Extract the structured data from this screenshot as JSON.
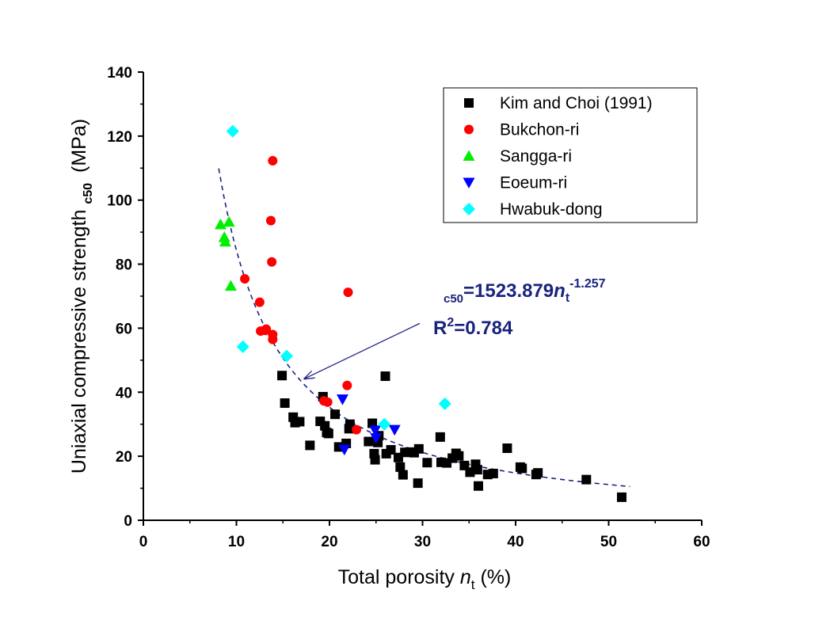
{
  "chart_data": {
    "type": "scatter",
    "xlabel": "Total porosity n_t (%)",
    "xlabel_parts": {
      "main": "Total porosity ",
      "var": "n",
      "sub": "t",
      "unit": " (%)"
    },
    "ylabel": "Uniaxial compressive strength c50 (MPa)",
    "ylabel_parts": {
      "main": "Uniaxial compressive strength ",
      "sub": "c50",
      "unit": " (MPa)"
    },
    "xlim": [
      0,
      60
    ],
    "ylim": [
      0,
      140
    ],
    "xticks": [
      0,
      10,
      20,
      30,
      40,
      50,
      60
    ],
    "yticks": [
      0,
      20,
      40,
      60,
      80,
      100,
      120,
      140
    ],
    "grid": false,
    "legend_position": "top-right",
    "series": [
      {
        "name": "Kim and Choi (1991)",
        "marker": "square",
        "color": "#000000",
        "points": [
          [
            14.9,
            45.2
          ],
          [
            15.2,
            36.6
          ],
          [
            16.1,
            32.2
          ],
          [
            16.3,
            30.5
          ],
          [
            16.8,
            30.8
          ],
          [
            17.9,
            23.4
          ],
          [
            19.0,
            30.9
          ],
          [
            19.3,
            38.6
          ],
          [
            19.5,
            29.5
          ],
          [
            19.7,
            27.4
          ],
          [
            19.9,
            27.1
          ],
          [
            20.6,
            33.1
          ],
          [
            21.0,
            22.9
          ],
          [
            21.8,
            24.0
          ],
          [
            22.1,
            28.6
          ],
          [
            22.2,
            30.0
          ],
          [
            24.2,
            24.6
          ],
          [
            24.6,
            30.3
          ],
          [
            24.8,
            20.8
          ],
          [
            24.9,
            18.9
          ],
          [
            25.2,
            24.3
          ],
          [
            25.3,
            26.4
          ],
          [
            26.0,
            45.0
          ],
          [
            26.1,
            20.8
          ],
          [
            26.6,
            22.0
          ],
          [
            27.4,
            19.6
          ],
          [
            27.6,
            16.6
          ],
          [
            27.9,
            14.2
          ],
          [
            28.1,
            21.2
          ],
          [
            28.6,
            21.3
          ],
          [
            29.1,
            21.1
          ],
          [
            29.5,
            11.6
          ],
          [
            29.6,
            22.3
          ],
          [
            30.5,
            18.0
          ],
          [
            31.9,
            26.0
          ],
          [
            32.0,
            18.1
          ],
          [
            32.6,
            17.9
          ],
          [
            33.2,
            19.4
          ],
          [
            33.6,
            20.9
          ],
          [
            33.9,
            20.1
          ],
          [
            34.5,
            17.1
          ],
          [
            35.1,
            15.0
          ],
          [
            35.7,
            17.5
          ],
          [
            35.9,
            15.8
          ],
          [
            36.0,
            10.7
          ],
          [
            37.0,
            14.3
          ],
          [
            37.6,
            14.6
          ],
          [
            39.1,
            22.5
          ],
          [
            40.5,
            16.6
          ],
          [
            40.7,
            16.2
          ],
          [
            42.2,
            14.3
          ],
          [
            42.4,
            14.8
          ],
          [
            47.6,
            12.7
          ],
          [
            51.4,
            7.2
          ]
        ]
      },
      {
        "name": "Bukchon-ri",
        "marker": "circle",
        "color": "#ff0000",
        "points": [
          [
            10.9,
            75.4
          ],
          [
            12.5,
            68.1
          ],
          [
            12.6,
            59.1
          ],
          [
            13.1,
            59.3
          ],
          [
            13.2,
            59.7
          ],
          [
            13.7,
            93.6
          ],
          [
            13.8,
            80.7
          ],
          [
            13.9,
            112.3
          ],
          [
            13.9,
            58.0
          ],
          [
            13.9,
            56.5
          ],
          [
            19.4,
            37.3
          ],
          [
            19.8,
            36.9
          ],
          [
            21.9,
            42.1
          ],
          [
            22.0,
            71.2
          ],
          [
            22.9,
            28.3
          ]
        ]
      },
      {
        "name": "Sangga-ri",
        "marker": "triangle-up",
        "color": "#00ee00",
        "points": [
          [
            8.3,
            92.4
          ],
          [
            8.7,
            88.4
          ],
          [
            8.8,
            87.0
          ],
          [
            9.2,
            93.2
          ],
          [
            9.4,
            73.2
          ]
        ]
      },
      {
        "name": "Eoeum-ri",
        "marker": "triangle-down",
        "color": "#0000ff",
        "points": [
          [
            21.4,
            37.8
          ],
          [
            21.6,
            22.1
          ],
          [
            24.9,
            28.1
          ],
          [
            25.0,
            25.7
          ],
          [
            27.0,
            28.3
          ]
        ]
      },
      {
        "name": "Hwabuk-dong",
        "marker": "diamond",
        "color": "#00ffff",
        "points": [
          [
            9.6,
            121.5
          ],
          [
            10.7,
            54.2
          ],
          [
            15.4,
            51.3
          ],
          [
            25.9,
            30.0
          ],
          [
            32.4,
            36.4
          ]
        ]
      }
    ],
    "fit": {
      "label": "fitted power curve",
      "coefficient": 1523.879,
      "exponent": -1.257,
      "x_range": [
        8.1,
        52.3
      ],
      "color": "#1a237e",
      "style": "dashed"
    },
    "annotation": {
      "eq_prefix": "c50",
      "eq_main": "=1523.879",
      "eq_var": "n",
      "eq_sub": "t",
      "eq_exp": "-1.257",
      "r2_prefix": "R",
      "r2_sup": "2",
      "r2_value": "=0.784",
      "arrow_tip": [
        17.3,
        44.2
      ],
      "arrow_tail": [
        29.7,
        61.5
      ]
    }
  }
}
